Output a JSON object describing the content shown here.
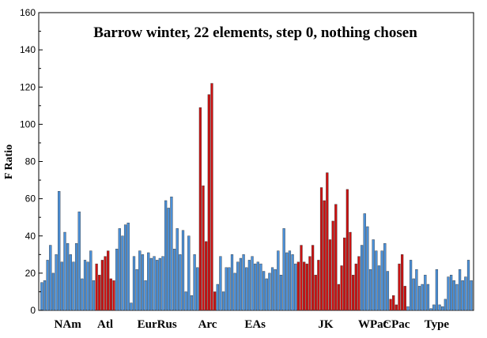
{
  "chart_data": {
    "type": "bar",
    "title": "Barrow winter, 22 elements, step 0, nothing chosen",
    "xlabel": "",
    "ylabel": "F Ratio",
    "ylim": [
      0,
      160
    ],
    "yticks": [
      0,
      20,
      40,
      60,
      80,
      100,
      120,
      140,
      160
    ],
    "grid": false,
    "colors": {
      "blue": "#4a90d9",
      "red": "#cc1111",
      "outline": "#333333"
    },
    "values": [
      15,
      16,
      27,
      35,
      20,
      30,
      64,
      26,
      42,
      36,
      30,
      26,
      36,
      53,
      17,
      27,
      26,
      32,
      16,
      25,
      19,
      27,
      29,
      32,
      17,
      16,
      33,
      44,
      40,
      46,
      47,
      4,
      29,
      22,
      32,
      30,
      16,
      31,
      28,
      29,
      27,
      28,
      29,
      59,
      55,
      61,
      33,
      44,
      30,
      43,
      10,
      40,
      8,
      30,
      23,
      109,
      67,
      37,
      116,
      122,
      10,
      14,
      29,
      10,
      23,
      23,
      30,
      20,
      26,
      28,
      30,
      23,
      27,
      29,
      25,
      26,
      25,
      21,
      17,
      20,
      23,
      22,
      32,
      19,
      44,
      31,
      32,
      30,
      25,
      26,
      35,
      26,
      25,
      29,
      35,
      19,
      27,
      66,
      59,
      74,
      38,
      48,
      57,
      14,
      24,
      39,
      65,
      42,
      19,
      25,
      29,
      35,
      52,
      45,
      22,
      38,
      32,
      24,
      32,
      36,
      21,
      6,
      8,
      3,
      25,
      30,
      13,
      2,
      27,
      17,
      22,
      13,
      14,
      19,
      14,
      1,
      3,
      22,
      3,
      2,
      6,
      18,
      19,
      16,
      14,
      22,
      16,
      18,
      27,
      16
    ],
    "value_colors": [
      "b",
      "b",
      "b",
      "b",
      "b",
      "b",
      "b",
      "b",
      "b",
      "b",
      "b",
      "b",
      "b",
      "b",
      "b",
      "b",
      "b",
      "b",
      "b",
      "r",
      "r",
      "r",
      "r",
      "r",
      "r",
      "r",
      "b",
      "b",
      "b",
      "b",
      "b",
      "b",
      "b",
      "b",
      "b",
      "b",
      "b",
      "b",
      "b",
      "b",
      "b",
      "b",
      "b",
      "b",
      "b",
      "b",
      "b",
      "b",
      "b",
      "b",
      "b",
      "b",
      "b",
      "b",
      "b",
      "r",
      "r",
      "r",
      "r",
      "r",
      "r",
      "b",
      "b",
      "b",
      "b",
      "b",
      "b",
      "b",
      "b",
      "b",
      "b",
      "b",
      "b",
      "b",
      "b",
      "b",
      "b",
      "b",
      "b",
      "b",
      "b",
      "b",
      "b",
      "b",
      "b",
      "b",
      "b",
      "b",
      "b",
      "r",
      "r",
      "r",
      "r",
      "r",
      "r",
      "r",
      "r",
      "r",
      "r",
      "r",
      "r",
      "r",
      "r",
      "r",
      "r",
      "r",
      "r",
      "r",
      "r",
      "r",
      "r",
      "b",
      "b",
      "b",
      "b",
      "b",
      "b",
      "b",
      "b",
      "b",
      "b",
      "r",
      "r",
      "r",
      "r",
      "r",
      "r",
      "b",
      "b",
      "b",
      "b",
      "b",
      "b",
      "b",
      "b",
      "b",
      "b",
      "b",
      "b",
      "b",
      "b",
      "b",
      "b",
      "b",
      "b",
      "b",
      "b",
      "b",
      "b",
      "b"
    ],
    "groups": [
      {
        "label": "NAm",
        "start": 0,
        "end": 18
      },
      {
        "label": "Atl",
        "start": 19,
        "end": 25
      },
      {
        "label": "EurRus",
        "start": 26,
        "end": 54
      },
      {
        "label": "Arc",
        "start": 55,
        "end": 60
      },
      {
        "label": "EAs",
        "start": 61,
        "end": 87
      },
      {
        "label": "JK",
        "start": 88,
        "end": 109
      },
      {
        "label": "WPac",
        "start": 110,
        "end": 120
      },
      {
        "label": "CPac",
        "start": 121,
        "end": 125
      },
      {
        "label": "Type",
        "start": 126,
        "end": 148
      }
    ]
  }
}
